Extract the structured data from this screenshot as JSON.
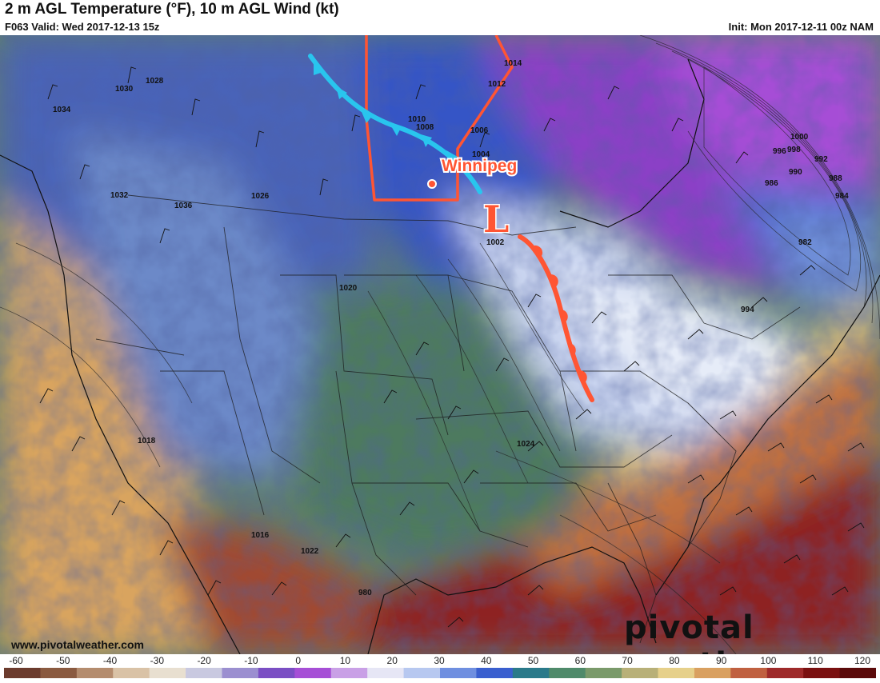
{
  "header": {
    "title": "2 m AGL Temperature (°F), 10 m AGL Wind (kt)",
    "valid": "F063 Valid: Wed 2017-12-13 15z",
    "init": "Init: Mon 2017-12-11 00z NAM"
  },
  "map": {
    "city_label": "Winnipeg",
    "low_label": "L",
    "cold_front_color": "#29c5ee",
    "warm_front_color": "#ff5533",
    "province_outline_color": "#ff5533",
    "isobar_labels": [
      "1028",
      "1030",
      "1034",
      "1032",
      "1036",
      "1026",
      "1020",
      "1018",
      "1016",
      "1014",
      "1012",
      "1010",
      "1008",
      "1006",
      "1004",
      "1002",
      "1000",
      "998",
      "996",
      "994",
      "992",
      "990",
      "988",
      "986",
      "984",
      "982",
      "980",
      "1024",
      "1022"
    ]
  },
  "footer": {
    "website": "www.pivotalweather.com",
    "brand": "pivotal weather"
  },
  "colorbar": {
    "labels": [
      "-60",
      "-50",
      "-40",
      "-30",
      "-20",
      "-10",
      "0",
      "10",
      "20",
      "30",
      "40",
      "50",
      "60",
      "70",
      "80",
      "90",
      "100",
      "110",
      "120"
    ],
    "colors": [
      "#6b3b2d",
      "#8a5a40",
      "#b48c6e",
      "#d9c2a6",
      "#e8dfd0",
      "#c9c9e0",
      "#9b8fd0",
      "#7b4fc4",
      "#a64fd6",
      "#c9a0e6",
      "#e6e6f5",
      "#b7c8f0",
      "#6f8fe0",
      "#3a5fcf",
      "#2a7a8a",
      "#4f8a6a",
      "#7a9a6a",
      "#b8b078",
      "#e6d08a",
      "#d9a060",
      "#c06040",
      "#9e2a2a",
      "#7a1010",
      "#5a0a0a"
    ]
  }
}
